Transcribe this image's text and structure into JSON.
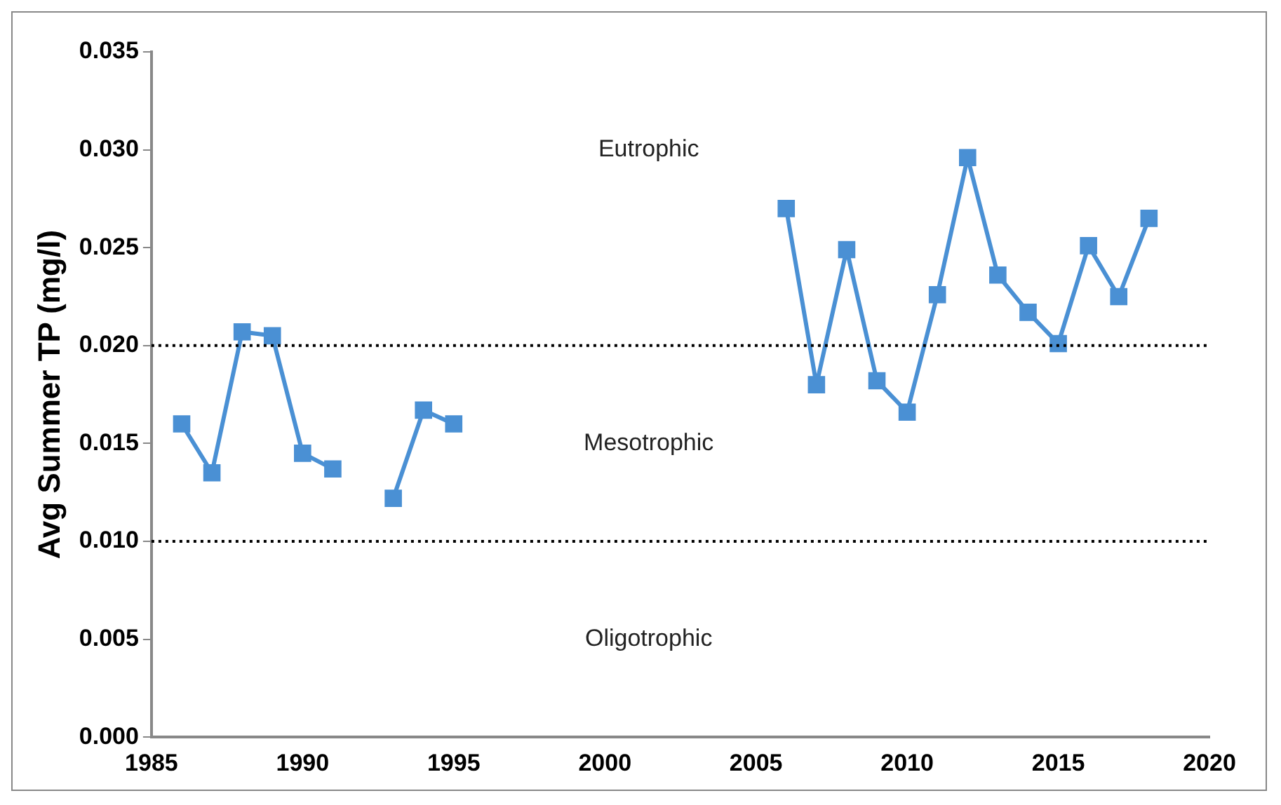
{
  "chart_data": {
    "type": "line",
    "ylabel": "Avg Summer TP (mg/l)",
    "x": [
      1986,
      1987,
      1988,
      1989,
      1990,
      1991,
      1992,
      1993,
      1994,
      1995,
      1996,
      2006,
      2007,
      2008,
      2009,
      2010,
      2011,
      2012,
      2013,
      2014,
      2015,
      2016,
      2017,
      2018
    ],
    "series": [
      {
        "color": "#4a90d4",
        "values": [
          0.016,
          0.0135,
          0.0207,
          0.0205,
          0.0145,
          0.0137,
          null,
          0.0122,
          0.0167,
          0.016,
          null,
          0.027,
          0.018,
          0.0249,
          0.0182,
          0.0166,
          0.0226,
          0.0296,
          0.0236,
          0.0217,
          0.0201,
          0.0251,
          0.0225,
          0.0265
        ]
      }
    ],
    "xlim": [
      1985,
      2020
    ],
    "xticks": [
      1985,
      1990,
      1995,
      2000,
      2005,
      2010,
      2015,
      2020
    ],
    "ylim": [
      0,
      0.035
    ],
    "yticks": [
      {
        "value": 0,
        "label": "0.000"
      },
      {
        "value": 0.005,
        "label": "0.005"
      },
      {
        "value": 0.01,
        "label": "0.010"
      },
      {
        "value": 0.015,
        "label": "0.015"
      },
      {
        "value": 0.02,
        "label": "0.020"
      },
      {
        "value": 0.025,
        "label": "0.025"
      },
      {
        "value": 0.03,
        "label": "0.030"
      },
      {
        "value": 0.035,
        "label": "0.035"
      }
    ],
    "ref_lines": [
      {
        "axis": "y",
        "value": 0.02,
        "color": "#000000",
        "line_style": "dotted"
      },
      {
        "axis": "y",
        "value": 0.01,
        "color": "#000000",
        "line_style": "dotted"
      }
    ],
    "annotations": [
      "Eutrophic",
      "Mesotrophic",
      "Oligotrophic"
    ],
    "grid": false,
    "legend": false,
    "marker": "square",
    "line_style": "solid"
  }
}
